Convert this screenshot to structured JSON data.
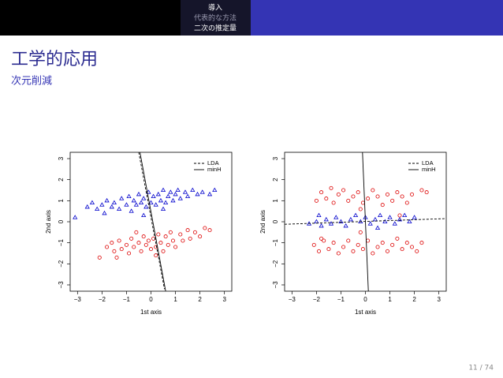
{
  "header": {
    "section": "導入",
    "subsections": [
      "代表的な方法",
      "二次の推定量"
    ]
  },
  "title": "工学的応用",
  "subtitle": "次元削減",
  "page_number": "11 / 74",
  "chart_data": [
    {
      "type": "scatter",
      "xlabel": "1st axis",
      "ylabel": "2nd axis",
      "xlim": [
        -3.3,
        3.3
      ],
      "ylim": [
        -3.3,
        3.3
      ],
      "xticks": [
        {
          "value": -3,
          "label": "−3"
        },
        {
          "value": -2,
          "label": "−2"
        },
        {
          "value": -1,
          "label": "−1"
        },
        0,
        1,
        2,
        3
      ],
      "yticks": [
        {
          "value": -3,
          "label": "−3"
        },
        {
          "value": -2,
          "label": "−2"
        },
        {
          "value": -1,
          "label": "−1"
        },
        0,
        1,
        2,
        3
      ],
      "grid": false,
      "legend": "top-right",
      "series": [
        {
          "marker": "triangle",
          "color": "#0000cc",
          "x": [
            -3.1,
            -2.6,
            -2.4,
            -2.2,
            -2.0,
            -1.8,
            -1.6,
            -1.5,
            -1.3,
            -1.2,
            -1.0,
            -0.9,
            -0.8,
            -0.7,
            -0.6,
            -0.5,
            -0.4,
            -0.3,
            -0.2,
            -0.1,
            0.0,
            0.1,
            0.2,
            0.3,
            0.4,
            0.5,
            0.6,
            0.7,
            0.8,
            0.9,
            1.0,
            1.1,
            1.2,
            1.4,
            1.5,
            1.7,
            1.9,
            2.1,
            2.4,
            2.6,
            -1.9,
            -0.3,
            0.5
          ],
          "values": [
            0.2,
            0.7,
            0.9,
            0.6,
            0.8,
            1.0,
            0.7,
            0.9,
            0.6,
            1.1,
            0.8,
            1.2,
            0.5,
            1.0,
            0.8,
            1.3,
            0.9,
            1.1,
            0.7,
            1.4,
            0.9,
            1.2,
            0.8,
            1.3,
            1.0,
            1.5,
            0.9,
            1.2,
            1.4,
            1.0,
            1.3,
            1.5,
            1.1,
            1.4,
            1.2,
            1.5,
            1.3,
            1.4,
            1.3,
            1.5,
            0.4,
            0.3,
            0.6
          ]
        },
        {
          "marker": "circle",
          "color": "#dd0000",
          "x": [
            -2.1,
            -1.8,
            -1.6,
            -1.5,
            -1.3,
            -1.2,
            -1.0,
            -0.9,
            -0.8,
            -0.7,
            -0.5,
            -0.4,
            -0.3,
            -0.2,
            -0.1,
            0.0,
            0.1,
            0.2,
            0.3,
            0.4,
            0.5,
            0.6,
            0.7,
            0.8,
            0.9,
            1.0,
            1.2,
            1.3,
            1.5,
            1.6,
            1.8,
            2.0,
            2.2,
            2.4,
            -1.4,
            0.2,
            -0.6
          ],
          "values": [
            -1.7,
            -1.2,
            -1.0,
            -1.4,
            -0.9,
            -1.3,
            -1.1,
            -1.5,
            -0.8,
            -1.2,
            -1.0,
            -1.4,
            -0.7,
            -1.1,
            -0.9,
            -1.3,
            -0.8,
            -1.2,
            -0.6,
            -1.0,
            -1.4,
            -0.7,
            -1.1,
            -0.5,
            -0.9,
            -1.2,
            -0.6,
            -0.9,
            -0.4,
            -0.8,
            -0.5,
            -0.7,
            -0.3,
            -0.4,
            -1.7,
            -1.6,
            -0.5
          ]
        },
        {
          "name": "LDA",
          "line": "dashed",
          "color": "#000000",
          "x": [
            -0.5,
            0.55
          ],
          "values": [
            3.3,
            -3.2
          ]
        },
        {
          "name": "minH",
          "line": "solid",
          "color": "#000000",
          "x": [
            -0.45,
            0.6
          ],
          "values": [
            3.3,
            -3.3
          ]
        }
      ]
    },
    {
      "type": "scatter",
      "xlabel": "1st axis",
      "ylabel": "2nd axis",
      "xlim": [
        -3.3,
        3.3
      ],
      "ylim": [
        -3.3,
        3.3
      ],
      "xticks": [
        {
          "value": -3,
          "label": "−3"
        },
        {
          "value": -2,
          "label": "−2"
        },
        {
          "value": -1,
          "label": "−1"
        },
        0,
        1,
        2,
        3
      ],
      "yticks": [
        {
          "value": -3,
          "label": "−3"
        },
        {
          "value": -2,
          "label": "−2"
        },
        {
          "value": -1,
          "label": "−1"
        },
        0,
        1,
        2,
        3
      ],
      "grid": false,
      "legend": "top-right",
      "series": [
        {
          "marker": "triangle",
          "color": "#0000cc",
          "x": [
            -2.3,
            -2.0,
            -1.8,
            -1.6,
            -1.4,
            -1.2,
            -1.0,
            -0.8,
            -0.6,
            -0.4,
            -0.2,
            0.0,
            0.2,
            0.4,
            0.6,
            0.8,
            1.0,
            1.2,
            1.4,
            1.6,
            1.8,
            2.0,
            -1.9,
            0.5
          ],
          "values": [
            -0.1,
            0.0,
            -0.2,
            0.1,
            -0.1,
            0.2,
            0.0,
            -0.2,
            0.1,
            0.3,
            0.0,
            0.2,
            -0.1,
            0.1,
            0.3,
            0.0,
            0.2,
            -0.1,
            0.1,
            0.3,
            0.0,
            0.2,
            0.3,
            -0.3
          ]
        },
        {
          "marker": "circle",
          "color": "#dd0000",
          "x": [
            -2.0,
            -1.8,
            -1.6,
            -1.3,
            -1.1,
            -0.9,
            -0.7,
            -0.5,
            -0.3,
            -0.1,
            0.1,
            0.3,
            0.5,
            0.7,
            0.9,
            1.1,
            1.3,
            1.5,
            1.7,
            1.9,
            2.3,
            2.5,
            -0.2,
            1.4,
            -1.4,
            -2.1,
            -1.9,
            -1.7,
            -1.5,
            -1.3,
            -1.1,
            -0.9,
            -0.7,
            -0.5,
            -0.3,
            -0.1,
            0.1,
            0.3,
            0.5,
            0.7,
            0.9,
            1.1,
            1.3,
            1.5,
            1.7,
            1.9,
            2.1,
            2.3,
            -0.2,
            -1.8
          ],
          "values": [
            1.0,
            1.4,
            1.1,
            0.9,
            1.3,
            1.5,
            1.0,
            1.2,
            1.4,
            0.9,
            1.1,
            1.5,
            1.2,
            0.8,
            1.3,
            1.0,
            1.4,
            1.2,
            0.9,
            1.3,
            1.5,
            1.4,
            0.6,
            0.3,
            1.6,
            -1.1,
            -1.4,
            -0.9,
            -1.3,
            -1.0,
            -1.5,
            -1.2,
            -0.9,
            -1.4,
            -1.1,
            -1.3,
            -0.9,
            -1.5,
            -1.2,
            -1.0,
            -1.4,
            -1.1,
            -0.8,
            -1.3,
            -1.0,
            -1.2,
            -1.4,
            -1.0,
            -0.5,
            -0.8
          ]
        },
        {
          "name": "LDA",
          "line": "dashed",
          "color": "#000000",
          "x": [
            -3.3,
            3.3
          ],
          "values": [
            -0.12,
            0.15
          ]
        },
        {
          "name": "minH",
          "line": "solid",
          "color": "#000000",
          "x": [
            -0.12,
            0.12
          ],
          "values": [
            3.3,
            -3.3
          ]
        }
      ]
    }
  ]
}
